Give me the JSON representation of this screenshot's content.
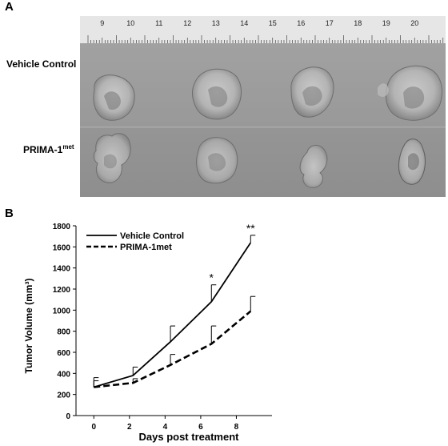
{
  "panel_a": {
    "letter": "A",
    "row_labels": {
      "vehicle": "Vehicle Control",
      "prima_base": "PRIMA-1",
      "prima_sup": "met"
    },
    "ruler_numbers": [
      "9",
      "10",
      "11",
      "12",
      "13",
      "14",
      "15",
      "16",
      "17",
      "18",
      "19",
      "20"
    ]
  },
  "panel_b": {
    "letter": "B"
  },
  "chart_data": {
    "type": "line",
    "xlabel": "Days post treatment",
    "ylabel": "Tumor Volume (mm³)",
    "xlim": [
      -1,
      10
    ],
    "ylim": [
      0,
      1800
    ],
    "xticks": [
      0,
      2,
      4,
      6,
      8
    ],
    "yticks": [
      0,
      200,
      400,
      600,
      800,
      1000,
      1200,
      1400,
      1600,
      1800
    ],
    "legend_position": "top-left",
    "series": [
      {
        "name": "Vehicle Control",
        "style": "solid",
        "x": [
          0,
          2.2,
          4.3,
          6.6,
          8.8
        ],
        "y": [
          270,
          380,
          700,
          1080,
          1640
        ],
        "error": [
          90,
          80,
          150,
          160,
          70
        ]
      },
      {
        "name": "PRIMA-1met",
        "style": "dashed",
        "x": [
          0,
          2.2,
          4.3,
          6.6,
          8.8
        ],
        "y": [
          270,
          310,
          480,
          680,
          990
        ],
        "error": [
          60,
          40,
          100,
          170,
          140
        ]
      }
    ],
    "annotations": [
      {
        "text": "*",
        "x": 6.6
      },
      {
        "text": "**",
        "x": 8.8
      }
    ]
  },
  "colors": {
    "line": "#000000",
    "photo_bg": "#9a9a9a",
    "ruler": "#e8e8e8"
  }
}
